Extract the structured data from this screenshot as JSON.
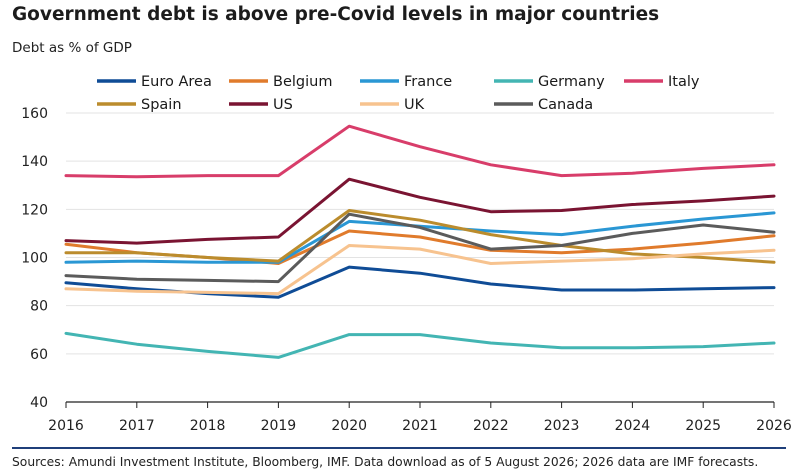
{
  "title": "Government debt is above pre-Covid levels in major countries",
  "subtitle": "Debt as % of GDP",
  "source": "Sources: Amundi Investment Institute, Bloomberg, IMF. Data download as of 5 August 2026; 2026 data are IMF forecasts.",
  "chart_data": {
    "type": "line",
    "x": [
      2016,
      2017,
      2018,
      2019,
      2020,
      2021,
      2022,
      2023,
      2024,
      2025,
      2026
    ],
    "ylim": [
      40,
      160
    ],
    "yticks": [
      40,
      60,
      80,
      100,
      120,
      140,
      160
    ],
    "grid": true,
    "legend_position": "top",
    "series": [
      {
        "name": "Euro Area",
        "color": "#0f4c96",
        "values": [
          89.5,
          87,
          85,
          83.5,
          96,
          93.5,
          89,
          86.5,
          86.5,
          87,
          87.5
        ]
      },
      {
        "name": "Belgium",
        "color": "#e07b2c",
        "values": [
          105.5,
          102,
          100,
          97.5,
          111,
          108.5,
          103,
          102,
          103.5,
          106,
          109
        ]
      },
      {
        "name": "France",
        "color": "#2a97d4",
        "values": [
          98,
          98.5,
          98,
          98,
          115,
          113,
          111,
          109.5,
          113,
          116,
          118.5
        ]
      },
      {
        "name": "Germany",
        "color": "#43b5b3",
        "values": [
          68.5,
          64,
          61,
          58.5,
          68,
          68,
          64.5,
          62.5,
          62.5,
          63,
          64.5
        ]
      },
      {
        "name": "Italy",
        "color": "#d83d6a",
        "values": [
          134,
          133.5,
          134,
          134,
          154.5,
          146,
          138.5,
          134,
          135,
          137,
          138.5
        ]
      },
      {
        "name": "Spain",
        "color": "#bb8c2d",
        "values": [
          102,
          102,
          100,
          98.5,
          119.5,
          115.5,
          109.5,
          105,
          101.5,
          100,
          98
        ]
      },
      {
        "name": "US",
        "color": "#7a1432",
        "values": [
          107,
          106,
          107.5,
          108.5,
          132.5,
          125,
          119,
          119.5,
          122,
          123.5,
          125.5
        ]
      },
      {
        "name": "UK",
        "color": "#f7c38f",
        "values": [
          87,
          86,
          85.5,
          85,
          105,
          103.5,
          97.5,
          98.5,
          99.5,
          101.5,
          103
        ]
      },
      {
        "name": "Canada",
        "color": "#5b5b5b",
        "values": [
          92.5,
          91,
          90.5,
          90,
          118,
          112.5,
          103.5,
          105,
          110,
          113.5,
          110.5
        ]
      }
    ]
  }
}
